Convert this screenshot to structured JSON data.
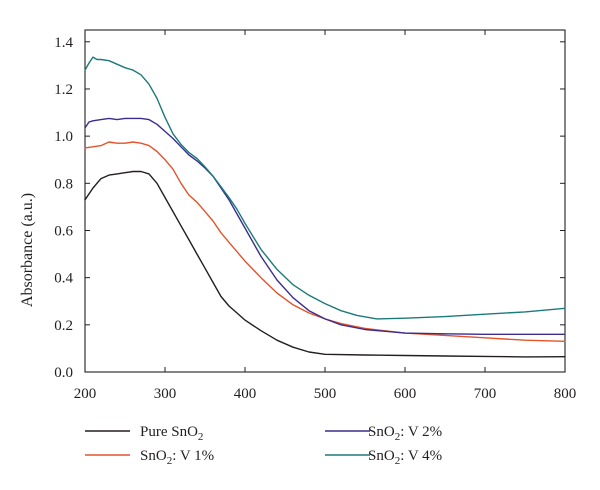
{
  "chart_data": {
    "type": "line",
    "title": "",
    "xlabel": "",
    "ylabel": "Absorbance (a.u.)",
    "xlim": [
      200,
      800
    ],
    "ylim": [
      0.0,
      1.45
    ],
    "xticks": [
      200,
      300,
      400,
      500,
      600,
      700,
      800
    ],
    "yticks": [
      0.0,
      0.2,
      0.4,
      0.6,
      0.8,
      1.0,
      1.2,
      1.4
    ],
    "xtick_labels": [
      "200",
      "300",
      "400",
      "500",
      "600",
      "700",
      "800"
    ],
    "ytick_labels": [
      "0.0",
      "0.2",
      "0.4",
      "0.6",
      "0.8",
      "1.0",
      "1.2",
      "1.4"
    ],
    "grid": false,
    "legend_position": "bottom",
    "series": [
      {
        "name": "Pure SnO2",
        "legend": {
          "base": "Pure SnO",
          "sub": "2",
          "suffix": ""
        },
        "color": "#231f20",
        "x": [
          200,
          210,
          220,
          230,
          240,
          250,
          260,
          270,
          280,
          290,
          300,
          310,
          320,
          330,
          340,
          350,
          360,
          370,
          380,
          390,
          400,
          420,
          440,
          460,
          480,
          500,
          550,
          600,
          650,
          700,
          750,
          800
        ],
        "y": [
          0.73,
          0.78,
          0.82,
          0.835,
          0.84,
          0.845,
          0.85,
          0.85,
          0.84,
          0.8,
          0.74,
          0.68,
          0.62,
          0.56,
          0.5,
          0.44,
          0.38,
          0.32,
          0.28,
          0.25,
          0.22,
          0.175,
          0.135,
          0.105,
          0.085,
          0.075,
          0.072,
          0.07,
          0.068,
          0.066,
          0.064,
          0.065
        ]
      },
      {
        "name": "SnO2: V 1%",
        "legend": {
          "base": "SnO",
          "sub": "2",
          "suffix": ": V 1%"
        },
        "color": "#e2542b",
        "x": [
          200,
          210,
          220,
          230,
          240,
          250,
          260,
          270,
          280,
          290,
          300,
          310,
          320,
          330,
          340,
          350,
          360,
          370,
          380,
          390,
          400,
          420,
          440,
          460,
          480,
          500,
          520,
          550,
          600,
          650,
          700,
          750,
          800
        ],
        "y": [
          0.95,
          0.955,
          0.96,
          0.975,
          0.97,
          0.97,
          0.975,
          0.97,
          0.96,
          0.935,
          0.9,
          0.86,
          0.8,
          0.75,
          0.72,
          0.68,
          0.64,
          0.59,
          0.55,
          0.51,
          0.47,
          0.4,
          0.335,
          0.285,
          0.25,
          0.225,
          0.205,
          0.185,
          0.165,
          0.155,
          0.145,
          0.135,
          0.13
        ]
      },
      {
        "name": "SnO2: V 2%",
        "legend": {
          "base": "SnO",
          "sub": "2",
          "suffix": ": V 2%"
        },
        "color": "#3a2d8f",
        "x": [
          200,
          205,
          210,
          220,
          230,
          240,
          250,
          260,
          270,
          280,
          290,
          300,
          310,
          320,
          330,
          340,
          350,
          360,
          370,
          380,
          390,
          400,
          420,
          440,
          460,
          480,
          500,
          520,
          550,
          600,
          650,
          700,
          750,
          800
        ],
        "y": [
          1.035,
          1.06,
          1.065,
          1.07,
          1.075,
          1.07,
          1.075,
          1.075,
          1.075,
          1.07,
          1.05,
          1.02,
          0.99,
          0.955,
          0.92,
          0.895,
          0.865,
          0.83,
          0.78,
          0.73,
          0.67,
          0.61,
          0.49,
          0.39,
          0.315,
          0.26,
          0.225,
          0.2,
          0.18,
          0.165,
          0.162,
          0.16,
          0.16,
          0.16
        ]
      },
      {
        "name": "SnO2: V 4%",
        "legend": {
          "base": "SnO",
          "sub": "2",
          "suffix": ": V 4%"
        },
        "color": "#1d7a7a",
        "x": [
          200,
          205,
          210,
          215,
          220,
          230,
          240,
          250,
          260,
          270,
          280,
          290,
          300,
          310,
          320,
          330,
          340,
          350,
          360,
          370,
          380,
          390,
          400,
          420,
          440,
          460,
          480,
          500,
          520,
          540,
          565,
          600,
          650,
          700,
          750,
          800
        ],
        "y": [
          1.28,
          1.31,
          1.335,
          1.325,
          1.325,
          1.32,
          1.305,
          1.29,
          1.28,
          1.26,
          1.22,
          1.16,
          1.08,
          1.01,
          0.965,
          0.93,
          0.905,
          0.87,
          0.83,
          0.785,
          0.74,
          0.69,
          0.63,
          0.52,
          0.435,
          0.37,
          0.325,
          0.29,
          0.26,
          0.24,
          0.225,
          0.228,
          0.235,
          0.245,
          0.255,
          0.27
        ]
      }
    ]
  }
}
